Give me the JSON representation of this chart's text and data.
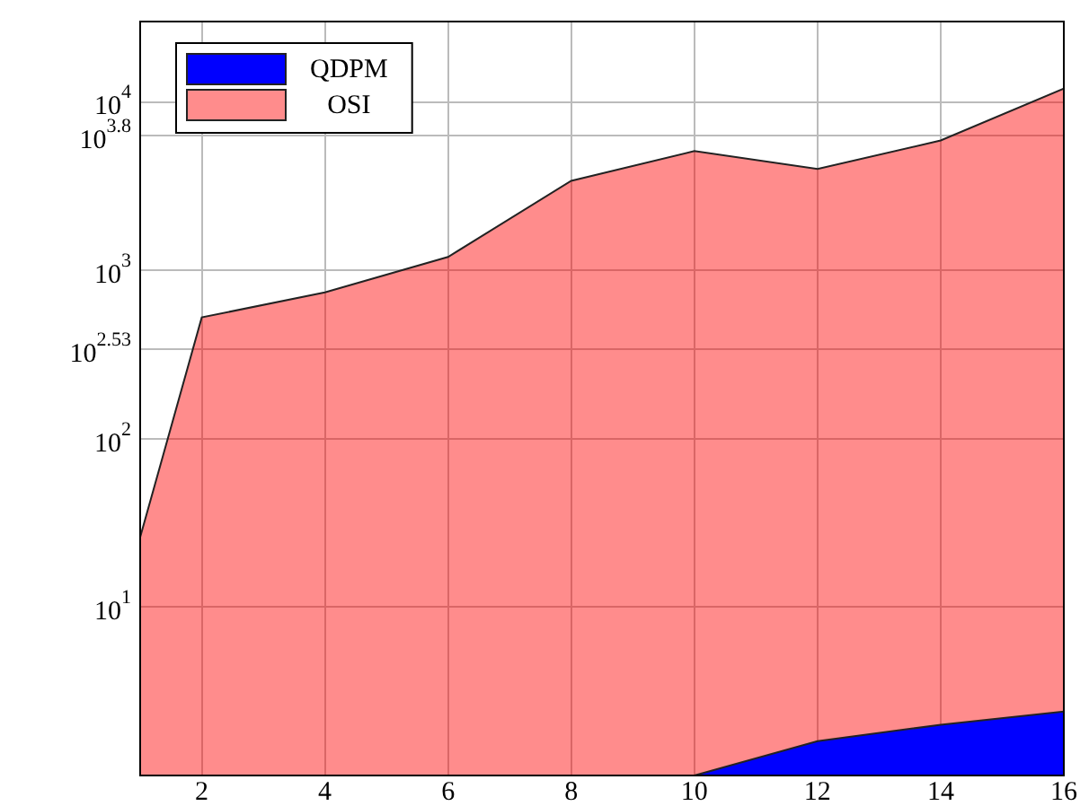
{
  "chart_data": {
    "type": "area",
    "x": [
      1,
      2,
      4,
      6,
      8,
      10,
      12,
      14,
      16
    ],
    "series": [
      {
        "name": "OSI",
        "color": "#ff0000",
        "values": [
          26,
          525,
          740,
          1200,
          3400,
          5100,
          4000,
          5900,
          12000
        ]
      },
      {
        "name": "QDPM",
        "color": "#0000ff",
        "values": [
          1,
          1,
          1,
          1,
          1,
          1,
          1.6,
          2,
          2.4
        ]
      }
    ],
    "log": "y",
    "xlim": [
      1,
      16
    ],
    "xticks": [
      2,
      4,
      6,
      8,
      10,
      12,
      14,
      16
    ],
    "ylim": [
      1,
      30000
    ],
    "yticks": [
      {
        "value": 10,
        "label": "10$^{1}$"
      },
      {
        "value": 100,
        "label": "10$^{2}$"
      },
      {
        "value": 338.8,
        "label": "10$^{2.53}$"
      },
      {
        "value": 1000,
        "label": "10$^{3}$"
      },
      {
        "value": 6310,
        "label": "10$^{3.8}$"
      },
      {
        "value": 10000,
        "label": "10$^{4}$"
      }
    ],
    "grid": true,
    "legend": "top left"
  }
}
